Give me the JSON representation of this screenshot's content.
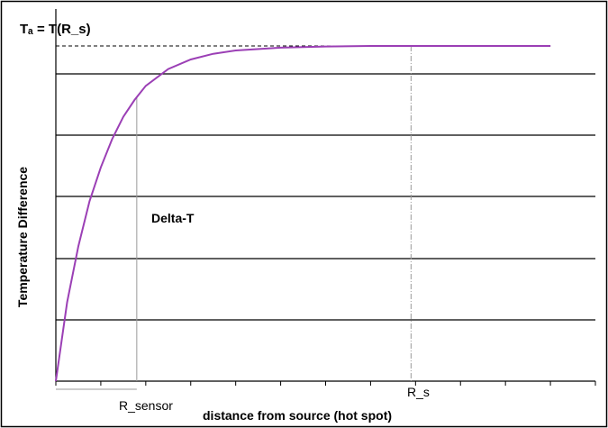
{
  "colors": {
    "curve": "#9b3fb5",
    "grid": "#000000",
    "guide": "#9a9a9a",
    "frame": "#000000"
  },
  "chart_data": {
    "type": "line",
    "title": "",
    "xlabel": "distance from source (hot spot)",
    "ylabel": "Temperature Difference",
    "top_label": "Tₐ = T(R_s)",
    "annotation": "Delta-T",
    "x_markers": {
      "r_sensor": "R_sensor",
      "r_s": "R_s"
    },
    "xlim": [
      0,
      12
    ],
    "ylim": [
      0,
      6
    ],
    "grid": "horizontal",
    "legend": "none",
    "series": [
      {
        "x": [
          0,
          0.25,
          0.5,
          0.75,
          1,
          1.25,
          1.5,
          1.75,
          2,
          2.5,
          3,
          3.5,
          4,
          5,
          6,
          7,
          8,
          9,
          10,
          11
        ],
        "values": [
          0,
          1.4,
          2.4,
          3.2,
          3.8,
          4.3,
          4.7,
          5.0,
          5.25,
          5.55,
          5.72,
          5.82,
          5.88,
          5.93,
          5.95,
          5.96,
          5.96,
          5.96,
          5.96,
          5.96
        ]
      }
    ],
    "asymptote_y": 5.96,
    "r_sensor_x": 1.8,
    "r_s_x": 7.9
  }
}
